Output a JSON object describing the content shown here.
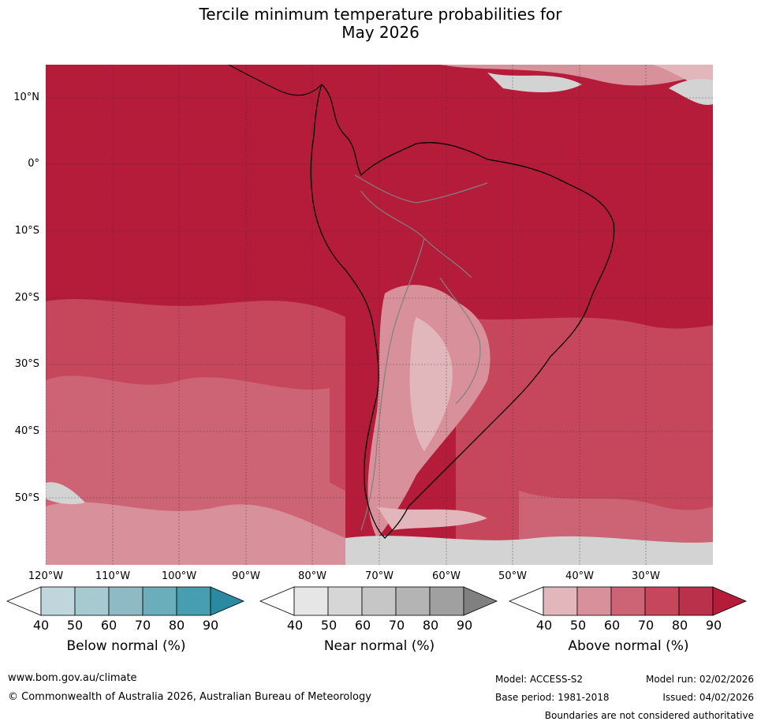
{
  "title": {
    "line1": "Tercile minimum temperature probabilities for",
    "line2": "May 2026"
  },
  "map": {
    "lat_labels": [
      "10°N",
      "0°",
      "10°S",
      "20°S",
      "30°S",
      "40°S",
      "50°S"
    ],
    "lon_labels": [
      "120°W",
      "110°W",
      "100°W",
      "90°W",
      "80°W",
      "70°W",
      "60°W",
      "50°W",
      "40°W",
      "30°W"
    ],
    "colors": {
      "ocean_dominant": "#b51c3a",
      "above_80": "#c6475c",
      "above_70": "#cc6475",
      "above_60": "#d8919b",
      "above_50": "#e2b7bc",
      "near_normal": "#d3d3d3",
      "coastline": "#000000",
      "borders": "#808080",
      "gridline": "#333333"
    }
  },
  "colorbars": [
    {
      "title": "Below normal (%)",
      "ticks": [
        "40",
        "50",
        "60",
        "70",
        "80",
        "90"
      ],
      "colors": [
        "#ffffff",
        "#bed6dc",
        "#a7c9d0",
        "#8fb9c4",
        "#6aaebc",
        "#459fb0",
        "#2a8aa1"
      ]
    },
    {
      "title": "Near normal (%)",
      "ticks": [
        "40",
        "50",
        "60",
        "70",
        "80",
        "90"
      ],
      "colors": [
        "#ffffff",
        "#e6e6e6",
        "#d6d6d6",
        "#c6c6c6",
        "#b4b4b4",
        "#a0a0a0",
        "#808080"
      ]
    },
    {
      "title": "Above normal (%)",
      "ticks": [
        "40",
        "50",
        "60",
        "70",
        "80",
        "90"
      ],
      "colors": [
        "#ffffff",
        "#e2b7bc",
        "#d8919b",
        "#cc6475",
        "#c6475c",
        "#b9314a",
        "#b51c3a"
      ]
    }
  ],
  "footer": {
    "website": "www.bom.gov.au/climate",
    "copyright": "© Commonwealth of Australia 2026, Australian Bureau of Meteorology",
    "model": "Model: ACCESS-S2",
    "base_period": "Base period: 1981-2018",
    "model_run": "Model run: 02/02/2026",
    "issued": "Issued: 04/02/2026",
    "disclaimer": "Boundaries are not considered authoritative"
  }
}
